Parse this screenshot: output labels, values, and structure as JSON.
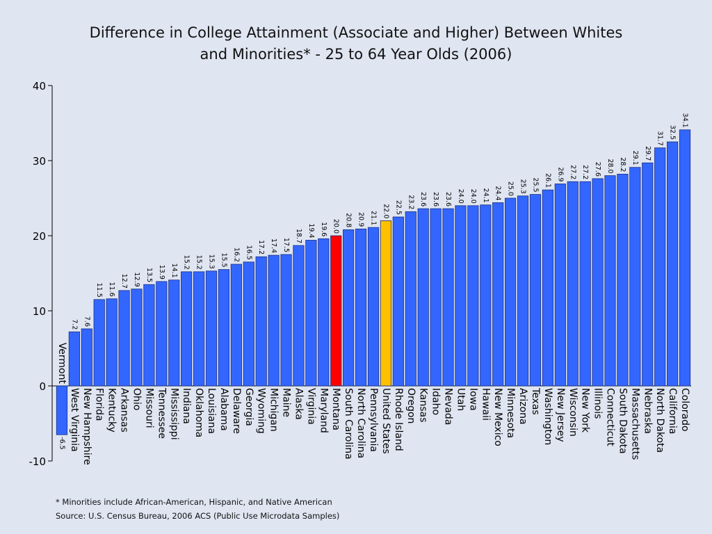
{
  "chart_data": {
    "type": "bar",
    "title": "Difference in College Attainment (Associate and Higher) Between Whites and Minorities* - 25 to 64 Year Olds (2006)",
    "title_lines": [
      "Difference in College Attainment (Associate and Higher) Between Whites",
      "and Minorities* - 25 to 64 Year Olds (2006)"
    ],
    "categories": [
      "Vermont",
      "West Virginia",
      "New Hampshire",
      "Florida",
      "Kentucky",
      "Arkansas",
      "Ohio",
      "Missouri",
      "Tennessee",
      "Mississippi",
      "Indiana",
      "Oklahoma",
      "Louisiana",
      "Alabama",
      "Delaware",
      "Georgia",
      "Wyoming",
      "Michigan",
      "Maine",
      "Alaska",
      "Virginia",
      "Maryland",
      "Montana",
      "South Carolina",
      "North Carolina",
      "Pennsylvania",
      "United States",
      "Rhode Island",
      "Oregon",
      "Kansas",
      "Idaho",
      "Nevada",
      "Utah",
      "Iowa",
      "Hawaii",
      "New Mexico",
      "Minnesota",
      "Arizona",
      "Texas",
      "Washington",
      "New Jersey",
      "Wisconsin",
      "New York",
      "Illinois",
      "Connecticut",
      "South Dakota",
      "Massachusetts",
      "Nebraska",
      "North Dakota",
      "California",
      "Colorado"
    ],
    "values": [
      -6.5,
      7.2,
      7.6,
      11.5,
      11.6,
      12.7,
      12.9,
      13.5,
      13.9,
      14.1,
      15.2,
      15.2,
      15.3,
      15.5,
      16.2,
      16.5,
      17.2,
      17.4,
      17.5,
      18.7,
      19.4,
      19.6,
      20.0,
      20.8,
      20.9,
      21.1,
      22.0,
      22.5,
      23.2,
      23.6,
      23.6,
      23.6,
      24.0,
      24.0,
      24.1,
      24.4,
      25.0,
      25.3,
      25.5,
      26.1,
      26.9,
      27.2,
      27.2,
      27.6,
      28.0,
      28.2,
      29.1,
      29.7,
      31.7,
      32.5,
      34.1
    ],
    "value_labels": [
      "-6.5",
      "7.2",
      "7.6",
      "11.5",
      "11.6",
      "12.7",
      "12.9",
      "13.5",
      "13.9",
      "14.1",
      "15.2",
      "15.2",
      "15.3",
      "15.5",
      "16.2",
      "16.5",
      "17.2",
      "17.4",
      "17.5",
      "18.7",
      "19.4",
      "19.6",
      "20.0",
      "20.8",
      "20.9",
      "21.1",
      "22.0",
      "22.5",
      "23.2",
      "23.6",
      "23.6",
      "23.6",
      "24.0",
      "24.0",
      "24.1",
      "24.4",
      "25.0",
      "25.3",
      "25.5",
      "26.1",
      "26.9",
      "27.2",
      "27.2",
      "27.6",
      "28.0",
      "28.2",
      "29.1",
      "29.7",
      "31.7",
      "32.5",
      "34.1"
    ],
    "highlights": {
      "Montana": "#ff0000",
      "United States": "#ffc000"
    },
    "bar_color": "#3366ff",
    "ylim": [
      -10,
      40
    ],
    "yticks": [
      "-10",
      "0",
      "10",
      "20",
      "30",
      "40"
    ],
    "xlabel": "",
    "ylabel": "",
    "grid": false,
    "legend": "none"
  },
  "footer": {
    "note": "* Minorities include African-American, Hispanic, and Native American",
    "source": "Source:  U.S. Census Bureau, 2006 ACS (Public Use Microdata Samples)"
  }
}
